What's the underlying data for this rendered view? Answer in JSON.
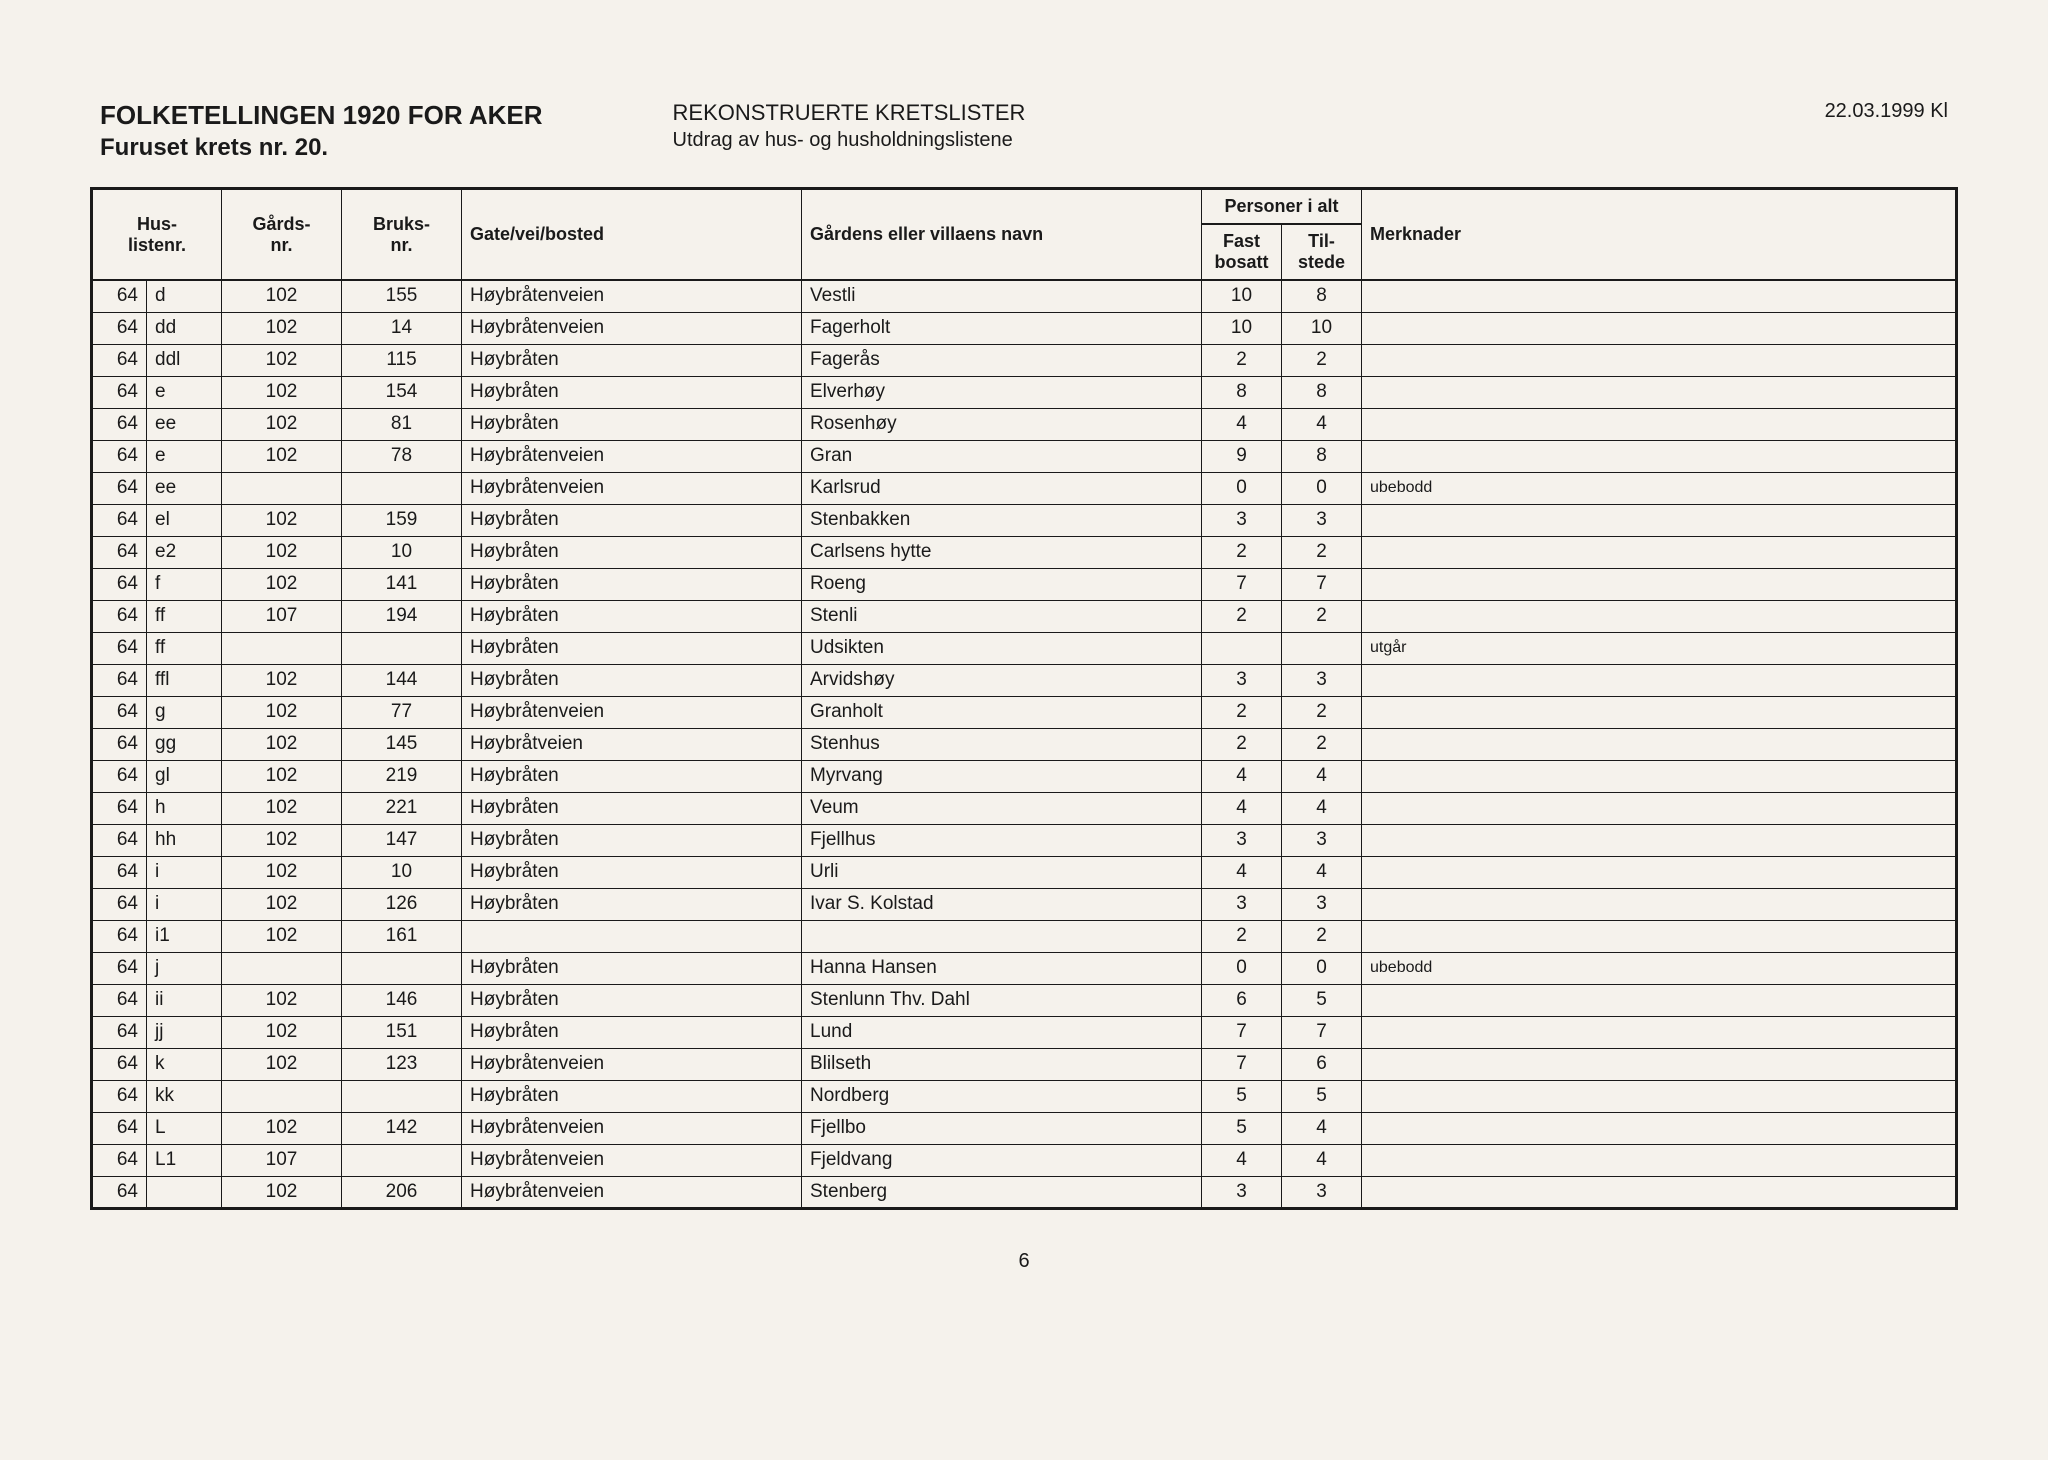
{
  "header": {
    "title_main": "FOLKETELLINGEN 1920 FOR AKER",
    "title_sub": "Furuset krets nr. 20.",
    "center_line1": "REKONSTRUERTE KRETSLISTER",
    "center_line2": "Utdrag av hus- og husholdningslistene",
    "date": "22.03.1999  Kl"
  },
  "columns": {
    "husliste": "Hus-\nlistenr.",
    "gards": "Gårds-\nnr.",
    "bruks": "Bruks-\nnr.",
    "gate": "Gate/vei/bosted",
    "navn": "Gårdens eller villaens navn",
    "personer": "Personer i alt",
    "fast": "Fast\nbosatt",
    "til": "Til-\nstede",
    "merk": "Merknader"
  },
  "rows": [
    {
      "hl1": "64",
      "hl2": "d",
      "gards": "102",
      "bruks": "155",
      "gate": "Høybråtenveien",
      "navn": "Vestli",
      "fast": "10",
      "til": "8",
      "merk": ""
    },
    {
      "hl1": "64",
      "hl2": "dd",
      "gards": "102",
      "bruks": "14",
      "gate": "Høybråtenveien",
      "navn": "Fagerholt",
      "fast": "10",
      "til": "10",
      "merk": ""
    },
    {
      "hl1": "64",
      "hl2": "ddl",
      "gards": "102",
      "bruks": "115",
      "gate": "Høybråten",
      "navn": "Fagerås",
      "fast": "2",
      "til": "2",
      "merk": ""
    },
    {
      "hl1": "64",
      "hl2": "e",
      "gards": "102",
      "bruks": "154",
      "gate": "Høybråten",
      "navn": "Elverhøy",
      "fast": "8",
      "til": "8",
      "merk": ""
    },
    {
      "hl1": "64",
      "hl2": "ee",
      "gards": "102",
      "bruks": "81",
      "gate": "Høybråten",
      "navn": "Rosenhøy",
      "fast": "4",
      "til": "4",
      "merk": ""
    },
    {
      "hl1": "64",
      "hl2": "e",
      "gards": "102",
      "bruks": "78",
      "gate": "Høybråtenveien",
      "navn": "Gran",
      "fast": "9",
      "til": "8",
      "merk": ""
    },
    {
      "hl1": "64",
      "hl2": "ee",
      "gards": "",
      "bruks": "",
      "gate": "Høybråtenveien",
      "navn": "Karlsrud",
      "fast": "0",
      "til": "0",
      "merk": "ubebodd"
    },
    {
      "hl1": "64",
      "hl2": "el",
      "gards": "102",
      "bruks": "159",
      "gate": "Høybråten",
      "navn": "Stenbakken",
      "fast": "3",
      "til": "3",
      "merk": ""
    },
    {
      "hl1": "64",
      "hl2": "e2",
      "gards": "102",
      "bruks": "10",
      "gate": "Høybråten",
      "navn": "Carlsens hytte",
      "fast": "2",
      "til": "2",
      "merk": ""
    },
    {
      "hl1": "64",
      "hl2": "f",
      "gards": "102",
      "bruks": "141",
      "gate": "Høybråten",
      "navn": "Roeng",
      "fast": "7",
      "til": "7",
      "merk": ""
    },
    {
      "hl1": "64",
      "hl2": "ff",
      "gards": "107",
      "bruks": "194",
      "gate": "Høybråten",
      "navn": "Stenli",
      "fast": "2",
      "til": "2",
      "merk": ""
    },
    {
      "hl1": "64",
      "hl2": "ff",
      "gards": "",
      "bruks": "",
      "gate": "Høybråten",
      "navn": "Udsikten",
      "fast": "",
      "til": "",
      "merk": "utgår"
    },
    {
      "hl1": "64",
      "hl2": "ffl",
      "gards": "102",
      "bruks": "144",
      "gate": "Høybråten",
      "navn": "Arvidshøy",
      "fast": "3",
      "til": "3",
      "merk": ""
    },
    {
      "hl1": "64",
      "hl2": "g",
      "gards": "102",
      "bruks": "77",
      "gate": "Høybråtenveien",
      "navn": "Granholt",
      "fast": "2",
      "til": "2",
      "merk": ""
    },
    {
      "hl1": "64",
      "hl2": "gg",
      "gards": "102",
      "bruks": "145",
      "gate": "Høybråtveien",
      "navn": "Stenhus",
      "fast": "2",
      "til": "2",
      "merk": ""
    },
    {
      "hl1": "64",
      "hl2": "gl",
      "gards": "102",
      "bruks": "219",
      "gate": "Høybråten",
      "navn": "Myrvang",
      "fast": "4",
      "til": "4",
      "merk": ""
    },
    {
      "hl1": "64",
      "hl2": "h",
      "gards": "102",
      "bruks": "221",
      "gate": "Høybråten",
      "navn": "Veum",
      "fast": "4",
      "til": "4",
      "merk": ""
    },
    {
      "hl1": "64",
      "hl2": "hh",
      "gards": "102",
      "bruks": "147",
      "gate": "Høybråten",
      "navn": "Fjellhus",
      "fast": "3",
      "til": "3",
      "merk": ""
    },
    {
      "hl1": "64",
      "hl2": "i",
      "gards": "102",
      "bruks": "10",
      "gate": "Høybråten",
      "navn": "Urli",
      "fast": "4",
      "til": "4",
      "merk": ""
    },
    {
      "hl1": "64",
      "hl2": "i",
      "gards": "102",
      "bruks": "126",
      "gate": "Høybråten",
      "navn": "Ivar S. Kolstad",
      "fast": "3",
      "til": "3",
      "merk": ""
    },
    {
      "hl1": "64",
      "hl2": "i1",
      "gards": "102",
      "bruks": "161",
      "gate": "",
      "navn": "",
      "fast": "2",
      "til": "2",
      "merk": ""
    },
    {
      "hl1": "64",
      "hl2": "j",
      "gards": "",
      "bruks": "",
      "gate": "Høybråten",
      "navn": "Hanna Hansen",
      "fast": "0",
      "til": "0",
      "merk": "ubebodd"
    },
    {
      "hl1": "64",
      "hl2": "ii",
      "gards": "102",
      "bruks": "146",
      "gate": "Høybråten",
      "navn": "Stenlunn Thv. Dahl",
      "fast": "6",
      "til": "5",
      "merk": ""
    },
    {
      "hl1": "64",
      "hl2": "jj",
      "gards": "102",
      "bruks": "151",
      "gate": "Høybråten",
      "navn": "Lund",
      "fast": "7",
      "til": "7",
      "merk": ""
    },
    {
      "hl1": "64",
      "hl2": "k",
      "gards": "102",
      "bruks": "123",
      "gate": "Høybråtenveien",
      "navn": "Blilseth",
      "fast": "7",
      "til": "6",
      "merk": ""
    },
    {
      "hl1": "64",
      "hl2": "kk",
      "gards": "",
      "bruks": "",
      "gate": "Høybråten",
      "navn": "Nordberg",
      "fast": "5",
      "til": "5",
      "merk": ""
    },
    {
      "hl1": "64",
      "hl2": "L",
      "gards": "102",
      "bruks": "142",
      "gate": "Høybråtenveien",
      "navn": "Fjellbo",
      "fast": "5",
      "til": "4",
      "merk": ""
    },
    {
      "hl1": "64",
      "hl2": "L1",
      "gards": "107",
      "bruks": "",
      "gate": "Høybråtenveien",
      "navn": "Fjeldvang",
      "fast": "4",
      "til": "4",
      "merk": ""
    },
    {
      "hl1": "64",
      "hl2": "",
      "gards": "102",
      "bruks": "206",
      "gate": "Høybråtenveien",
      "navn": "Stenberg",
      "fast": "3",
      "til": "3",
      "merk": ""
    }
  ],
  "page_number": "6"
}
